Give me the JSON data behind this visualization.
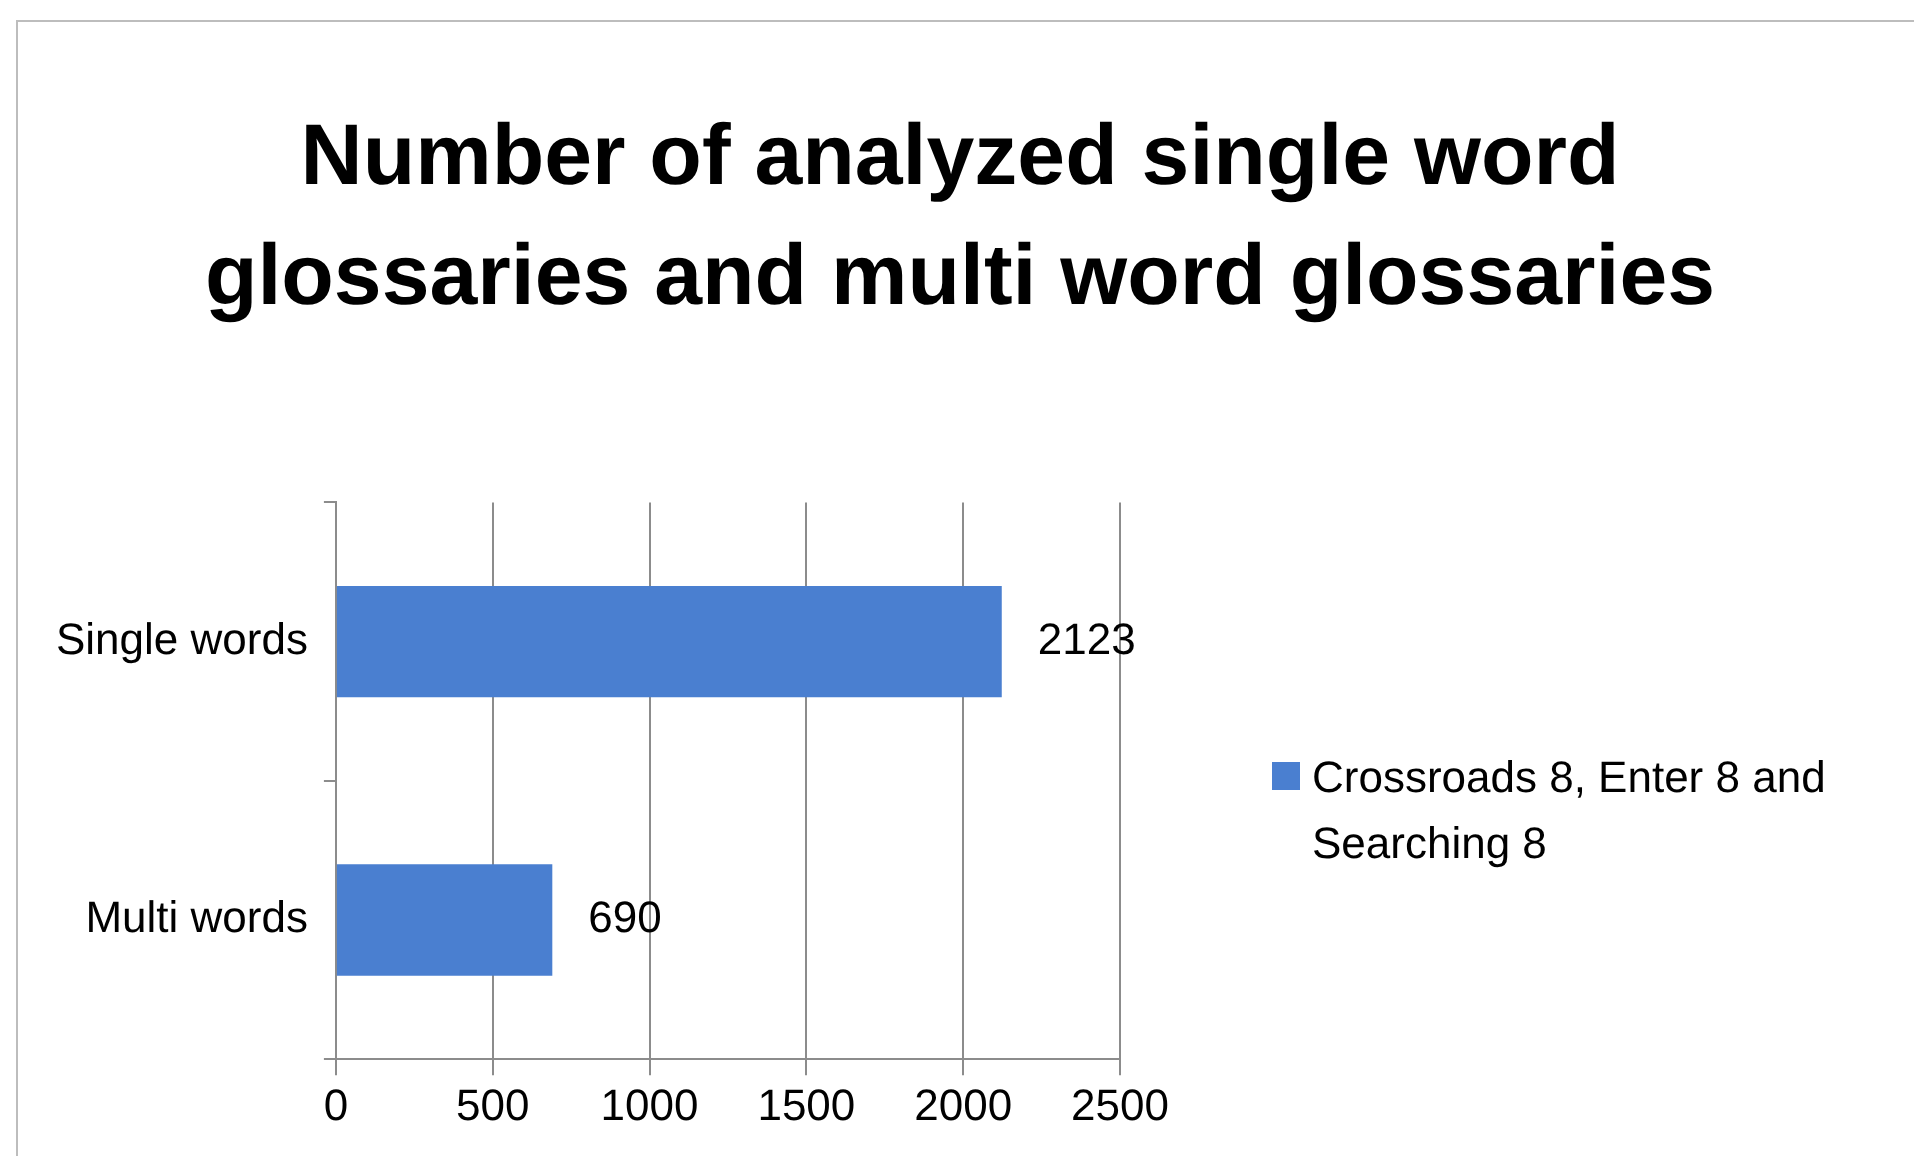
{
  "chart_data": {
    "type": "bar",
    "orientation": "horizontal",
    "title": "Number of analyzed single word glossaries and multi word glossaries",
    "categories": [
      "Single words",
      "Multi words"
    ],
    "series": [
      {
        "name": "Crossroads 8, Enter 8 and Searching 8",
        "color": "#4a7fd0",
        "values": [
          2123,
          690
        ]
      }
    ],
    "xlim": [
      0,
      2500
    ],
    "xticks": [
      0,
      500,
      1000,
      1500,
      2000,
      2500
    ],
    "grid": "x",
    "legend": "right",
    "data_labels": true
  }
}
